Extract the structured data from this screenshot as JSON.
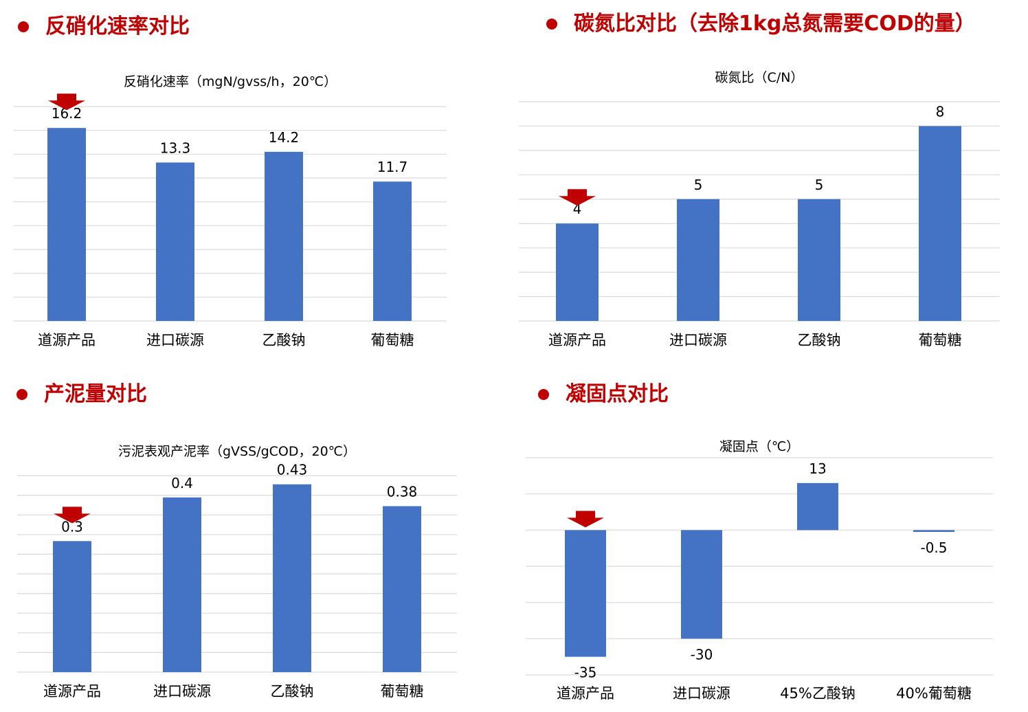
{
  "colors": {
    "heading": "#c00000",
    "bar": "#4472c4",
    "arrow": "#c00000",
    "grid": "#d9d9d9",
    "text": "#000000"
  },
  "sections": [
    {
      "heading": "反硝化速率对比"
    },
    {
      "heading": "碳氮比对比（去除1kg总氮需要COD的量）"
    },
    {
      "heading": "产泥量对比"
    },
    {
      "heading": "凝固点对比"
    }
  ],
  "chart_data": [
    {
      "type": "bar",
      "title": "反硝化速率（mgN/gvss/h，20℃）",
      "categories": [
        "道源产品",
        "进口碳源",
        "乙酸钠",
        "葡萄糖"
      ],
      "values": [
        16.2,
        13.3,
        14.2,
        11.7
      ],
      "labels": [
        "16.2",
        "13.3",
        "14.2",
        "11.7"
      ],
      "ylim": [
        0,
        18
      ],
      "highlight_index": 0
    },
    {
      "type": "bar",
      "title": "碳氮比（C/N）",
      "categories": [
        "道源产品",
        "进口碳源",
        "乙酸钠",
        "葡萄糖"
      ],
      "values": [
        4,
        5,
        5,
        8
      ],
      "labels": [
        "4",
        "5",
        "5",
        "8"
      ],
      "ylim": [
        0,
        9
      ],
      "highlight_index": 0
    },
    {
      "type": "bar",
      "title": "污泥表观产泥率（gVSS/gCOD，20℃）",
      "categories": [
        "道源产品",
        "进口碳源",
        "乙酸钠",
        "葡萄糖"
      ],
      "values": [
        0.3,
        0.4,
        0.43,
        0.38
      ],
      "labels": [
        "0.3",
        "0.4",
        "0.43",
        "0.38"
      ],
      "ylim": [
        0,
        0.45
      ],
      "highlight_index": 0
    },
    {
      "type": "bar",
      "title": "凝固点（℃）",
      "categories": [
        "道源产品",
        "进口碳源",
        "45%乙酸钠",
        "40%葡萄糖"
      ],
      "values": [
        -35,
        -30,
        13,
        -0.5
      ],
      "labels": [
        "-35",
        "-30",
        "13",
        "-0.5"
      ],
      "ylim": [
        -40,
        20
      ],
      "highlight_index": 0
    }
  ]
}
